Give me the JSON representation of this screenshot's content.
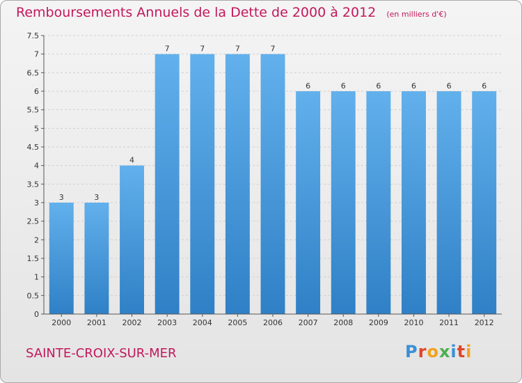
{
  "header": {
    "title": "Remboursements Annuels de la Dette de 2000 à 2012",
    "subtitle": "(en milliers d'€)"
  },
  "footer": {
    "commune": "SAINTE-CROIX-SUR-MER",
    "brand": "Proxiti",
    "brand_colors": [
      "#3a8fd6",
      "#e0452b",
      "#f1a21d",
      "#4caf50",
      "#3a8fd6",
      "#e0452b",
      "#f1a21d"
    ]
  },
  "colors": {
    "title": "#c2185b",
    "bar_light": "#62b0ec",
    "bar_dark": "#2f80c6",
    "grid": "#cfcfcf",
    "axis": "#555555"
  },
  "chart_data": {
    "type": "bar",
    "title": "Remboursements Annuels de la Dette de 2000 à 2012",
    "subtitle": "(en milliers d'€)",
    "categories": [
      "2000",
      "2001",
      "2002",
      "2003",
      "2004",
      "2005",
      "2006",
      "2007",
      "2008",
      "2009",
      "2010",
      "2011",
      "2012"
    ],
    "values": [
      3,
      3,
      4,
      7,
      7,
      7,
      7,
      6,
      6,
      6,
      6,
      6,
      6
    ],
    "data_labels": [
      "3",
      "3",
      "4",
      "7",
      "7",
      "7",
      "7",
      "6",
      "6",
      "6",
      "6",
      "6",
      "6"
    ],
    "ylim": [
      0,
      7.5
    ],
    "yticks": [
      0,
      0.5,
      1,
      1.5,
      2,
      2.5,
      3,
      3.5,
      4,
      4.5,
      5,
      5.5,
      6,
      6.5,
      7,
      7.5
    ],
    "ytick_labels": [
      "0",
      "0.5",
      "1",
      "1.5",
      "2",
      "2.5",
      "3",
      "3.5",
      "4",
      "4.5",
      "5",
      "5.5",
      "6",
      "6.5",
      "7",
      "7.5"
    ],
    "grid": true
  }
}
